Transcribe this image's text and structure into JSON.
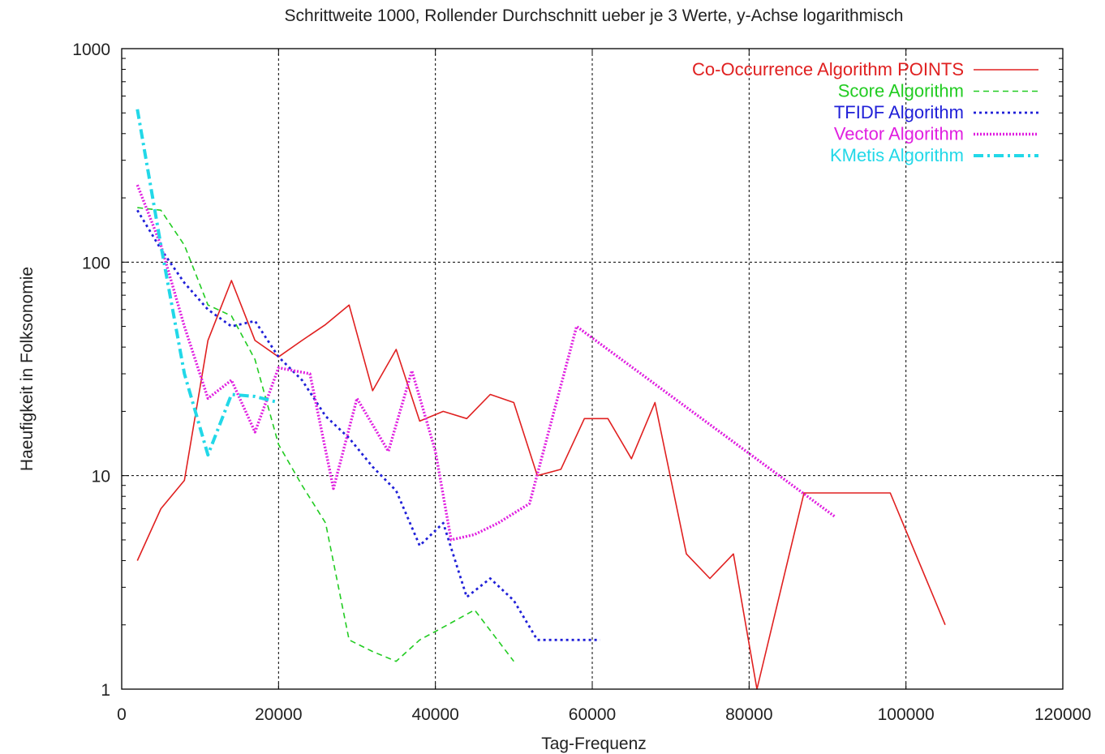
{
  "chart_data": {
    "type": "line",
    "title": "Schrittweite 1000, Rollender Durchschnitt ueber je 3 Werte, y-Achse logarithmisch",
    "xlabel": "Tag-Frequenz",
    "ylabel": "Haeufigkeit in Folksonomie",
    "xlim": [
      0,
      120000
    ],
    "ylim": [
      1,
      1000
    ],
    "yscale": "log",
    "grid": true,
    "legend_position": "top-right",
    "x_ticks": [
      "0",
      "20000",
      "40000",
      "60000",
      "80000",
      "100000",
      "120000"
    ],
    "y_ticks": [
      "1",
      "10",
      "100",
      "1000"
    ],
    "series": [
      {
        "name": "Co-Occurrence Algorithm POINTS",
        "color": "#e02020",
        "dash": "solid",
        "points": [
          [
            2000,
            4
          ],
          [
            5000,
            7
          ],
          [
            8000,
            9.5
          ],
          [
            11000,
            43
          ],
          [
            14000,
            82
          ],
          [
            17000,
            43
          ],
          [
            20000,
            36
          ],
          [
            23000,
            43
          ],
          [
            26000,
            51
          ],
          [
            29000,
            63
          ],
          [
            32000,
            25
          ],
          [
            35000,
            39
          ],
          [
            38000,
            18
          ],
          [
            41000,
            20
          ],
          [
            44000,
            18.5
          ],
          [
            47000,
            24
          ],
          [
            50000,
            22
          ],
          [
            53000,
            10
          ],
          [
            56000,
            10.7
          ],
          [
            59000,
            18.5
          ],
          [
            62000,
            18.5
          ],
          [
            65000,
            12
          ],
          [
            68000,
            22
          ],
          [
            72000,
            4.3
          ],
          [
            75000,
            3.3
          ],
          [
            78000,
            4.3
          ],
          [
            81000,
            1
          ],
          [
            87000,
            8.3
          ],
          [
            98000,
            8.3
          ],
          [
            105000,
            2
          ]
        ]
      },
      {
        "name": "Score Algorithm",
        "color": "#22cc22",
        "dash": "dashed",
        "points": [
          [
            2000,
            180
          ],
          [
            5000,
            175
          ],
          [
            8000,
            120
          ],
          [
            11000,
            63
          ],
          [
            14000,
            56
          ],
          [
            17000,
            35
          ],
          [
            20000,
            14
          ],
          [
            23000,
            9
          ],
          [
            26000,
            6
          ],
          [
            29000,
            1.7
          ],
          [
            32000,
            1.5
          ],
          [
            35000,
            1.35
          ],
          [
            38000,
            1.7
          ],
          [
            41000,
            1.95
          ],
          [
            45000,
            2.35
          ],
          [
            50000,
            1.35
          ]
        ]
      },
      {
        "name": "TFIDF Algorithm",
        "color": "#2020d8",
        "dash": "dotted",
        "points": [
          [
            2000,
            175
          ],
          [
            5000,
            115
          ],
          [
            8000,
            80
          ],
          [
            11000,
            60
          ],
          [
            14000,
            50
          ],
          [
            17000,
            53
          ],
          [
            20000,
            36
          ],
          [
            23000,
            28
          ],
          [
            26000,
            19
          ],
          [
            29000,
            15
          ],
          [
            32000,
            11
          ],
          [
            35000,
            8.5
          ],
          [
            38000,
            4.7
          ],
          [
            41000,
            6
          ],
          [
            44000,
            2.7
          ],
          [
            47000,
            3.3
          ],
          [
            50000,
            2.6
          ],
          [
            53000,
            1.7
          ],
          [
            61000,
            1.7
          ]
        ]
      },
      {
        "name": "Vector Algorithm",
        "color": "#e020e0",
        "dash": "dense-dotted",
        "points": [
          [
            2000,
            230
          ],
          [
            5000,
            120
          ],
          [
            8000,
            50
          ],
          [
            11000,
            23
          ],
          [
            14000,
            28
          ],
          [
            17000,
            16
          ],
          [
            20000,
            32
          ],
          [
            24000,
            30
          ],
          [
            27000,
            8.7
          ],
          [
            30000,
            23
          ],
          [
            34000,
            13
          ],
          [
            37000,
            31
          ],
          [
            40000,
            13
          ],
          [
            42000,
            5
          ],
          [
            45000,
            5.3
          ],
          [
            48000,
            6
          ],
          [
            52000,
            7.4
          ],
          [
            58000,
            50
          ],
          [
            91000,
            6.4
          ]
        ]
      },
      {
        "name": "KMetis Algorithm",
        "color": "#22d8e8",
        "dash": "dash-dot",
        "points": [
          [
            2000,
            520
          ],
          [
            5000,
            120
          ],
          [
            8000,
            30
          ],
          [
            11000,
            12.5
          ],
          [
            14000,
            24
          ],
          [
            17000,
            23.5
          ],
          [
            20000,
            22
          ]
        ]
      }
    ]
  }
}
